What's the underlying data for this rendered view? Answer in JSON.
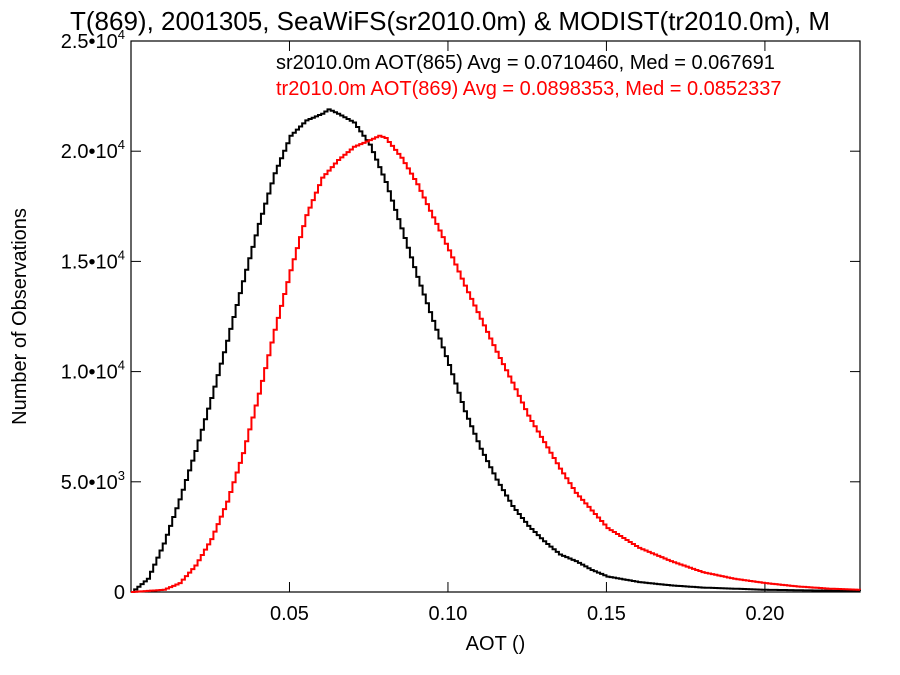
{
  "chart_data": {
    "type": "histogram",
    "title": "T(869), 2001305, SeaWiFS(sr2010.0m) & MODIST(tr2010.0m), M",
    "xlabel": "AOT ()",
    "ylabel": "Number of Observations",
    "xlim": [
      0.0,
      0.23
    ],
    "ylim": [
      0,
      25000
    ],
    "grid": false,
    "x_ticks": [
      {
        "value": 0.05,
        "label": "0.05"
      },
      {
        "value": 0.1,
        "label": "0.10"
      },
      {
        "value": 0.15,
        "label": "0.15"
      },
      {
        "value": 0.2,
        "label": "0.20"
      }
    ],
    "y_ticks": [
      {
        "value": 0,
        "mant": "0",
        "exp": ""
      },
      {
        "value": 5000,
        "mant": "5.0•10",
        "exp": "3"
      },
      {
        "value": 10000,
        "mant": "1.0•10",
        "exp": "4"
      },
      {
        "value": 15000,
        "mant": "1.5•10",
        "exp": "4"
      },
      {
        "value": 20000,
        "mant": "2.0•10",
        "exp": "4"
      },
      {
        "value": 25000,
        "mant": "2.5•10",
        "exp": "4"
      }
    ],
    "legend_position": "top-right",
    "series": [
      {
        "name": "sr2010.0m AOT(865)",
        "legend": "sr2010.0m AOT(865) Avg = 0.0710460, Med = 0.067691",
        "color": "#000000",
        "x": [
          0.0,
          0.005,
          0.01,
          0.015,
          0.02,
          0.025,
          0.03,
          0.035,
          0.04,
          0.045,
          0.05,
          0.055,
          0.06,
          0.062,
          0.065,
          0.07,
          0.075,
          0.08,
          0.085,
          0.09,
          0.095,
          0.1,
          0.105,
          0.11,
          0.115,
          0.12,
          0.125,
          0.13,
          0.135,
          0.14,
          0.145,
          0.15,
          0.16,
          0.17,
          0.18,
          0.19,
          0.2,
          0.21,
          0.22,
          0.23
        ],
        "y": [
          0,
          600,
          2200,
          4200,
          6400,
          8800,
          11400,
          14100,
          16700,
          19000,
          20700,
          21400,
          21700,
          21900,
          21700,
          21300,
          20300,
          18600,
          16500,
          14300,
          12300,
          10300,
          8200,
          6500,
          5100,
          3900,
          3000,
          2300,
          1700,
          1400,
          1000,
          700,
          450,
          300,
          200,
          150,
          100,
          80,
          60,
          50
        ]
      },
      {
        "name": "tr2010.0m AOT(869)",
        "legend": "tr2010.0m AOT(869) Avg = 0.0898353, Med = 0.0852337",
        "color": "#ff0000",
        "x": [
          0.0,
          0.01,
          0.015,
          0.02,
          0.025,
          0.03,
          0.035,
          0.04,
          0.045,
          0.05,
          0.055,
          0.06,
          0.065,
          0.07,
          0.075,
          0.078,
          0.08,
          0.085,
          0.09,
          0.095,
          0.1,
          0.105,
          0.11,
          0.115,
          0.12,
          0.125,
          0.13,
          0.135,
          0.14,
          0.145,
          0.15,
          0.16,
          0.17,
          0.18,
          0.19,
          0.2,
          0.21,
          0.22,
          0.23
        ],
        "y": [
          0,
          100,
          400,
          1200,
          2400,
          4100,
          6300,
          9000,
          11900,
          14600,
          17100,
          18800,
          19600,
          20200,
          20500,
          20700,
          20600,
          19700,
          18500,
          17000,
          15500,
          13900,
          12400,
          10900,
          9500,
          8000,
          6800,
          5600,
          4500,
          3700,
          2900,
          2000,
          1400,
          900,
          600,
          400,
          250,
          150,
          100
        ]
      }
    ]
  }
}
